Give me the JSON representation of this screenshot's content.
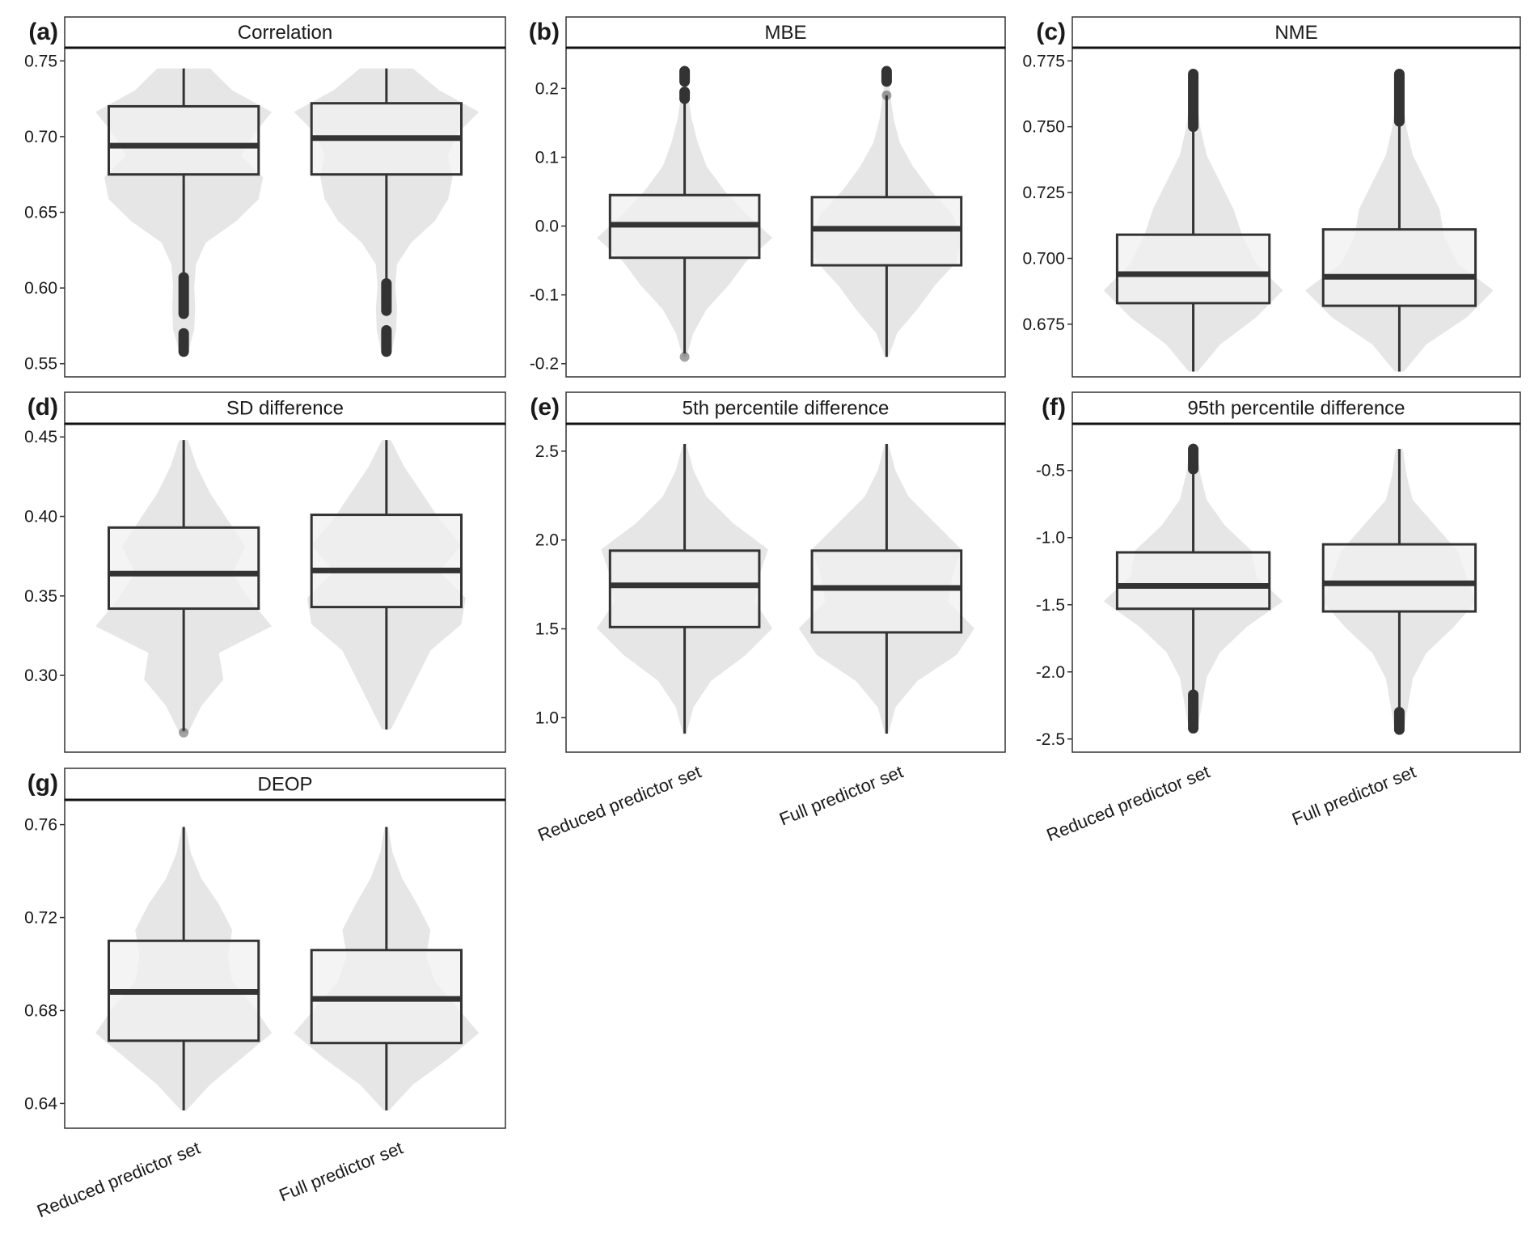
{
  "chart_data": {
    "type": "box-violin",
    "categories": [
      "Reduced predictor set",
      "Full predictor set"
    ],
    "colors": {
      "violin": "#e6e6e6",
      "box_fill": "#f0f0f0",
      "box_line": "#333333",
      "outlier": "#333333"
    },
    "panels": [
      {
        "letter": "(a)",
        "title": "Correlation",
        "ylim": [
          0.55,
          0.75
        ],
        "ticks": [
          "0.55",
          "0.60",
          "0.65",
          "0.70",
          "0.75"
        ],
        "series": [
          {
            "q1": 0.675,
            "median": 0.694,
            "q3": 0.72,
            "whisker_low": 0.607,
            "whisker_high": 0.745,
            "outliers": [
              [
                0.583,
                0.607
              ],
              [
                0.558,
                0.57
              ]
            ],
            "range": [
              0.558,
              0.745
            ],
            "violin": [
              0.05,
              0.12,
              0.13,
              0.12,
              0.14,
              0.25,
              0.6,
              0.85,
              0.9,
              0.65,
              0.8,
              1.0,
              0.55,
              0.3
            ]
          },
          {
            "q1": 0.675,
            "median": 0.699,
            "q3": 0.722,
            "whisker_low": 0.603,
            "whisker_high": 0.745,
            "outliers": [
              [
                0.585,
                0.603
              ],
              [
                0.558,
                0.572
              ]
            ],
            "range": [
              0.558,
              0.745
            ],
            "violin": [
              0.06,
              0.11,
              0.12,
              0.1,
              0.12,
              0.28,
              0.55,
              0.7,
              0.75,
              0.7,
              0.8,
              1.05,
              0.6,
              0.3
            ]
          }
        ]
      },
      {
        "letter": "(b)",
        "title": "MBE",
        "ylim": [
          -0.2,
          0.24
        ],
        "ticks": [
          "-0.2",
          "-0.1",
          "0.0",
          "0.1",
          "0.2"
        ],
        "series": [
          {
            "q1": -0.046,
            "median": 0.002,
            "q3": 0.045,
            "whisker_low": -0.185,
            "whisker_high": 0.18,
            "outliers": [
              [
                0.185,
                0.195
              ],
              [
                0.21,
                0.225
              ],
              [
                -0.19,
                -0.19
              ]
            ],
            "range": [
              -0.19,
              0.225
            ],
            "violin": [
              0.02,
              0.1,
              0.25,
              0.5,
              0.7,
              1.0,
              0.7,
              0.45,
              0.25,
              0.15,
              0.08,
              0.04,
              0.02
            ]
          },
          {
            "q1": -0.057,
            "median": -0.004,
            "q3": 0.042,
            "whisker_low": -0.19,
            "whisker_high": 0.19,
            "outliers": [
              [
                0.19,
                0.19
              ],
              [
                0.21,
                0.225
              ]
            ],
            "range": [
              -0.19,
              0.225
            ],
            "violin": [
              0.02,
              0.12,
              0.35,
              0.55,
              0.8,
              0.85,
              0.75,
              0.5,
              0.3,
              0.15,
              0.08,
              0.04,
              0.02
            ]
          }
        ]
      },
      {
        "letter": "(c)",
        "title": "NME",
        "ylim": [
          0.66,
          0.775
        ],
        "ticks": [
          "0.675",
          "0.700",
          "0.725",
          "0.750",
          "0.775"
        ],
        "series": [
          {
            "q1": 0.683,
            "median": 0.694,
            "q3": 0.709,
            "whisker_low": 0.657,
            "whisker_high": 0.75,
            "outliers": [
              [
                0.75,
                0.77
              ]
            ],
            "range": [
              0.657,
              0.77
            ],
            "violin": [
              0.05,
              0.3,
              0.7,
              1.0,
              0.7,
              0.55,
              0.45,
              0.3,
              0.15,
              0.08,
              0.04,
              0.02
            ]
          },
          {
            "q1": 0.682,
            "median": 0.693,
            "q3": 0.711,
            "whisker_low": 0.657,
            "whisker_high": 0.752,
            "outliers": [
              [
                0.752,
                0.77
              ]
            ],
            "range": [
              0.657,
              0.77
            ],
            "violin": [
              0.05,
              0.3,
              0.75,
              1.05,
              0.65,
              0.5,
              0.45,
              0.3,
              0.15,
              0.08,
              0.04,
              0.02
            ]
          }
        ]
      },
      {
        "letter": "(d)",
        "title": "SD difference",
        "ylim": [
          0.26,
          0.45
        ],
        "ticks": [
          "0.30",
          "0.35",
          "0.40",
          "0.45"
        ],
        "series": [
          {
            "q1": 0.342,
            "median": 0.364,
            "q3": 0.393,
            "whisker_low": 0.265,
            "whisker_high": 0.448,
            "outliers": [
              [
                0.264,
                0.264
              ]
            ],
            "range": [
              0.264,
              0.448
            ],
            "violin": [
              0.05,
              0.2,
              0.45,
              0.4,
              1.0,
              0.75,
              0.55,
              0.7,
              0.5,
              0.3,
              0.15,
              0.05
            ]
          },
          {
            "q1": 0.343,
            "median": 0.366,
            "q3": 0.401,
            "whisker_low": 0.266,
            "whisker_high": 0.448,
            "outliers": [],
            "range": [
              0.266,
              0.448
            ],
            "violin": [
              0.05,
              0.2,
              0.35,
              0.5,
              0.85,
              0.9,
              0.6,
              0.85,
              0.6,
              0.4,
              0.2,
              0.05
            ]
          }
        ]
      },
      {
        "letter": "(e)",
        "title": "5th percentile difference",
        "ylim": [
          0.88,
          2.58
        ],
        "ticks": [
          "1.0",
          "1.5",
          "2.0",
          "2.5"
        ],
        "series": [
          {
            "q1": 1.51,
            "median": 1.745,
            "q3": 1.94,
            "whisker_low": 0.91,
            "whisker_high": 2.54,
            "outliers": [],
            "range": [
              0.91,
              2.54
            ],
            "violin": [
              0.02,
              0.1,
              0.3,
              0.7,
              1.0,
              0.8,
              0.85,
              0.95,
              0.55,
              0.25,
              0.1,
              0.02
            ]
          },
          {
            "q1": 1.48,
            "median": 1.73,
            "q3": 1.94,
            "whisker_low": 0.91,
            "whisker_high": 2.54,
            "outliers": [],
            "range": [
              0.91,
              2.54
            ],
            "violin": [
              0.02,
              0.1,
              0.35,
              0.8,
              1.0,
              0.7,
              0.75,
              0.85,
              0.55,
              0.25,
              0.1,
              0.02
            ]
          }
        ]
      },
      {
        "letter": "(f)",
        "title": "95th percentile difference",
        "ylim": [
          -2.5,
          -0.25
        ],
        "ticks": [
          "-2.5",
          "-2.0",
          "-1.5",
          "-1.0",
          "-0.5"
        ],
        "series": [
          {
            "q1": -1.53,
            "median": -1.36,
            "q3": -1.11,
            "whisker_low": -2.17,
            "whisker_high": -0.49,
            "outliers": [
              [
                -0.49,
                -0.34
              ],
              [
                -2.42,
                -2.17
              ]
            ],
            "range": [
              -2.42,
              -0.34
            ],
            "violin": [
              0.05,
              0.1,
              0.15,
              0.3,
              0.6,
              1.0,
              0.7,
              0.65,
              0.35,
              0.15,
              0.08,
              0.04
            ]
          },
          {
            "q1": -1.55,
            "median": -1.34,
            "q3": -1.05,
            "whisker_low": -2.3,
            "whisker_high": -0.34,
            "outliers": [
              [
                -2.43,
                -2.3
              ]
            ],
            "range": [
              -2.43,
              -0.34
            ],
            "violin": [
              0.05,
              0.1,
              0.15,
              0.3,
              0.6,
              0.85,
              0.75,
              0.65,
              0.4,
              0.15,
              0.08,
              0.04
            ]
          }
        ]
      },
      {
        "letter": "(g)",
        "title": "DEOP",
        "ylim": [
          0.635,
          0.765
        ],
        "ticks": [
          "0.64",
          "0.68",
          "0.72",
          "0.76"
        ],
        "series": [
          {
            "q1": 0.667,
            "median": 0.688,
            "q3": 0.71,
            "whisker_low": 0.637,
            "whisker_high": 0.759,
            "outliers": [],
            "range": [
              0.637,
              0.759
            ],
            "violin": [
              0.03,
              0.3,
              0.65,
              1.0,
              0.8,
              0.55,
              0.5,
              0.55,
              0.4,
              0.2,
              0.08,
              0.02
            ]
          },
          {
            "q1": 0.666,
            "median": 0.685,
            "q3": 0.706,
            "whisker_low": 0.637,
            "whisker_high": 0.759,
            "outliers": [],
            "range": [
              0.637,
              0.759
            ],
            "violin": [
              0.03,
              0.3,
              0.7,
              1.05,
              0.8,
              0.55,
              0.45,
              0.5,
              0.35,
              0.18,
              0.07,
              0.02
            ]
          }
        ]
      }
    ]
  }
}
